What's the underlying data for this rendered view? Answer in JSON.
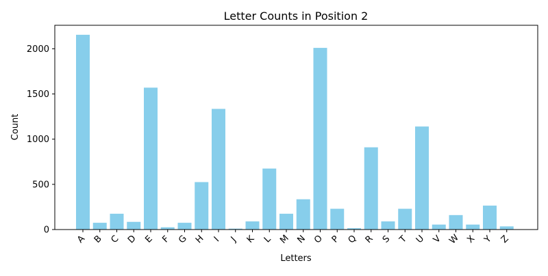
{
  "chart_data": {
    "type": "bar",
    "title": "Letter Counts in Position 2",
    "xlabel": "Letters",
    "ylabel": "Count",
    "ylim": [
      0,
      2260
    ],
    "yticks": [
      0,
      500,
      1000,
      1500,
      2000
    ],
    "grid": false,
    "bar_color": "#87ceeb",
    "categories": [
      "A",
      "B",
      "C",
      "D",
      "E",
      "F",
      "G",
      "H",
      "I",
      "J",
      "K",
      "L",
      "M",
      "N",
      "O",
      "P",
      "Q",
      "R",
      "S",
      "T",
      "U",
      "V",
      "W",
      "X",
      "Y",
      "Z"
    ],
    "values": [
      2155,
      75,
      175,
      85,
      1570,
      25,
      75,
      525,
      1335,
      10,
      90,
      675,
      175,
      335,
      2010,
      230,
      15,
      910,
      90,
      230,
      1140,
      55,
      160,
      55,
      265,
      35
    ]
  }
}
